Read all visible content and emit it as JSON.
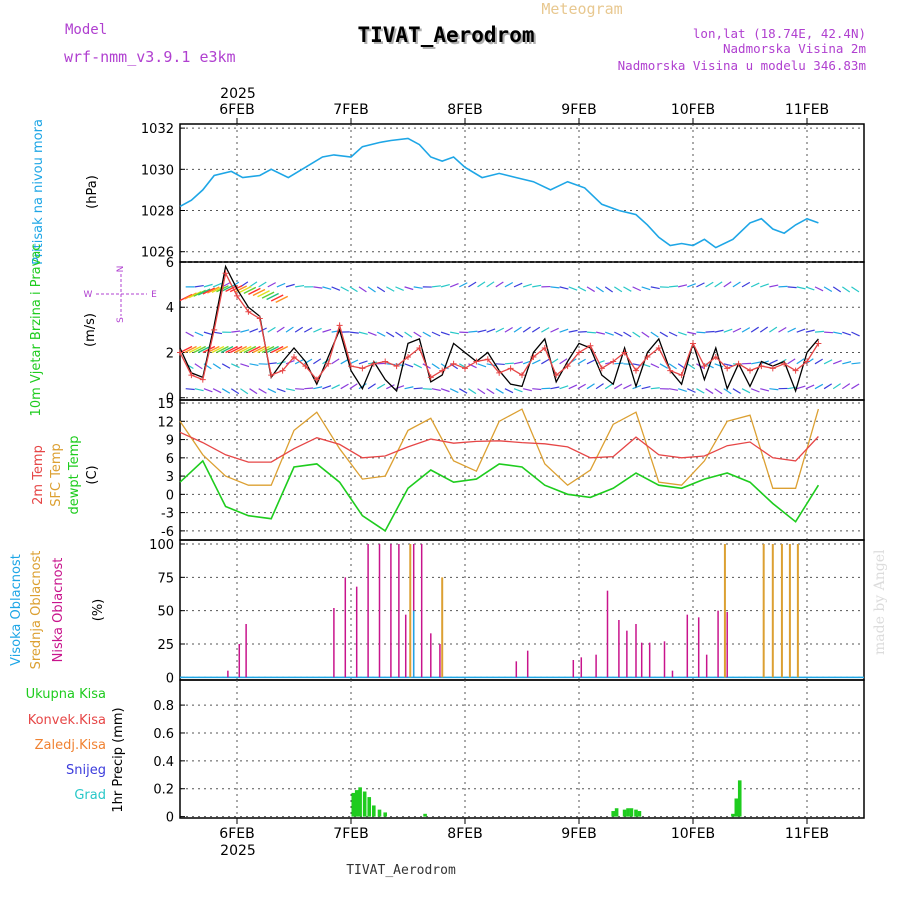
{
  "header": {
    "model_label": "Model",
    "model_name": "wrf-nmm_v3.9.1 e3km",
    "meteogram": "Meteogram",
    "title": "TIVAT_Aerodrom",
    "lonlat": "lon,lat (18.74E, 42.4N)",
    "height": "Nadmorska Visina 2m",
    "model_height": "Nadmorska Visina u modelu 346.83m",
    "footer": "TIVAT_Aerodrom",
    "watermark": "made by Angel",
    "year": "2025"
  },
  "colors": {
    "pressure": "#1ea6e6",
    "wind_speed": "#e64646",
    "wind_gust": "#000000",
    "temp_2m": "#e64646",
    "temp_sfc": "#dca032",
    "temp_dew": "#1ecc1e",
    "cloud_high": "#1ea6e6",
    "cloud_mid": "#dca032",
    "cloud_low": "#c8148c",
    "precip_total": "#1ecc1e",
    "label_green": "#1ecc1e",
    "label_red": "#e64646",
    "label_orange": "#f08232",
    "label_blue": "#3c3cdc",
    "label_cyan": "#28c8c8",
    "purple": "#b040d0"
  },
  "chart_data": [
    {
      "type": "line",
      "panel": "pressure",
      "ylabel_rotated": "Pritisak na nivou mora",
      "unit": "(hPa)",
      "ylim": [
        1025.5,
        1032.2
      ],
      "yticks": [
        1026,
        1028,
        1030,
        1032
      ],
      "x_range_days": [
        0,
        6
      ],
      "x_ticks": [
        "6FEB",
        "7FEB",
        "8FEB",
        "9FEB",
        "10FEB",
        "11FEB"
      ],
      "series": [
        {
          "name": "MSLP",
          "x": [
            0,
            0.1,
            0.2,
            0.3,
            0.45,
            0.55,
            0.7,
            0.8,
            0.95,
            1.1,
            1.25,
            1.35,
            1.5,
            1.6,
            1.75,
            1.85,
            2.0,
            2.1,
            2.2,
            2.3,
            2.4,
            2.5,
            2.65,
            2.8,
            2.95,
            3.1,
            3.25,
            3.4,
            3.55,
            3.7,
            3.85,
            4.0,
            4.1,
            4.2,
            4.3,
            4.4,
            4.5,
            4.6,
            4.7,
            4.85,
            5.0,
            5.1,
            5.2,
            5.3,
            5.4,
            5.5,
            5.6
          ],
          "y": [
            1028.2,
            1028.5,
            1029.0,
            1029.7,
            1029.9,
            1029.6,
            1029.7,
            1030.0,
            1029.6,
            1030.1,
            1030.6,
            1030.7,
            1030.6,
            1031.1,
            1031.3,
            1031.4,
            1031.5,
            1031.2,
            1030.6,
            1030.4,
            1030.6,
            1030.1,
            1029.6,
            1029.8,
            1029.6,
            1029.4,
            1029.0,
            1029.4,
            1029.1,
            1028.3,
            1028.0,
            1027.8,
            1027.3,
            1026.7,
            1026.3,
            1026.4,
            1026.3,
            1026.6,
            1026.2,
            1026.6,
            1027.4,
            1027.6,
            1027.1,
            1026.9,
            1027.3,
            1027.6,
            1027.4
          ]
        }
      ]
    },
    {
      "type": "line",
      "panel": "wind",
      "ylabel_rotated": "10m Vjetar Brzina i Pravac",
      "unit": "(m/s)",
      "ylim": [
        -0.1,
        6
      ],
      "yticks": [
        0,
        2,
        4,
        6
      ],
      "compass": {
        "n": "N",
        "s": "S",
        "w": "W",
        "e": "E"
      },
      "series": [
        {
          "name": "speed",
          "x": [
            0,
            0.1,
            0.2,
            0.3,
            0.4,
            0.5,
            0.6,
            0.7,
            0.8,
            0.9,
            1.0,
            1.1,
            1.2,
            1.3,
            1.4,
            1.5,
            1.6,
            1.7,
            1.8,
            1.9,
            2.0,
            2.1,
            2.2,
            2.3,
            2.4,
            2.5,
            2.6,
            2.7,
            2.8,
            2.9,
            3.0,
            3.1,
            3.2,
            3.3,
            3.4,
            3.5,
            3.6,
            3.7,
            3.8,
            3.9,
            4.0,
            4.1,
            4.2,
            4.3,
            4.4,
            4.5,
            4.6,
            4.7,
            4.8,
            4.9,
            5.0,
            5.1,
            5.2,
            5.3,
            5.4,
            5.5,
            5.6
          ],
          "y": [
            2.0,
            1.0,
            0.8,
            3.0,
            5.5,
            4.5,
            3.8,
            3.5,
            1.0,
            1.2,
            1.8,
            1.4,
            0.8,
            1.5,
            3.2,
            1.4,
            1.3,
            1.5,
            1.6,
            1.4,
            1.8,
            2.2,
            0.9,
            1.2,
            1.5,
            1.3,
            1.6,
            1.7,
            1.1,
            1.3,
            1.0,
            1.8,
            2.2,
            1.0,
            1.4,
            2.0,
            2.3,
            1.3,
            1.6,
            2.0,
            1.2,
            1.8,
            2.2,
            1.2,
            1.0,
            2.4,
            1.4,
            1.8,
            1.3,
            1.5,
            1.2,
            1.4,
            1.3,
            1.5,
            1.2,
            1.6,
            2.4
          ]
        },
        {
          "name": "gust",
          "x": [
            0,
            0.1,
            0.2,
            0.3,
            0.4,
            0.5,
            0.6,
            0.7,
            0.8,
            0.9,
            1.0,
            1.1,
            1.2,
            1.3,
            1.4,
            1.5,
            1.6,
            1.7,
            1.8,
            1.9,
            2.0,
            2.1,
            2.2,
            2.3,
            2.4,
            2.5,
            2.6,
            2.7,
            2.8,
            2.9,
            3.0,
            3.1,
            3.2,
            3.3,
            3.4,
            3.5,
            3.6,
            3.7,
            3.8,
            3.9,
            4.0,
            4.1,
            4.2,
            4.3,
            4.4,
            4.5,
            4.6,
            4.7,
            4.8,
            4.9,
            5.0,
            5.1,
            5.2,
            5.3,
            5.4,
            5.5,
            5.6
          ],
          "y": [
            2.2,
            1.1,
            0.9,
            3.2,
            5.8,
            4.8,
            4.0,
            3.6,
            0.9,
            1.6,
            2.2,
            1.6,
            0.6,
            1.8,
            3.0,
            1.2,
            0.4,
            1.6,
            0.8,
            0.3,
            2.4,
            2.6,
            0.7,
            1.0,
            2.4,
            2.0,
            1.6,
            2.0,
            1.2,
            0.6,
            0.5,
            2.0,
            2.6,
            0.7,
            1.6,
            2.4,
            2.2,
            1.0,
            0.6,
            2.2,
            0.5,
            2.0,
            2.6,
            1.2,
            0.6,
            2.4,
            0.8,
            2.2,
            0.4,
            1.5,
            0.5,
            1.6,
            1.4,
            1.6,
            0.3,
            2.0,
            2.6
          ]
        }
      ]
    },
    {
      "type": "line",
      "panel": "temperature",
      "ylabel_rotated": "2m Temp SFC Temp dewpt Temp",
      "labels": [
        "2m Temp",
        "SFC Temp",
        "dewpt Temp"
      ],
      "unit": "(C)",
      "ylim": [
        -7.5,
        15.5
      ],
      "yticks": [
        -6,
        -3,
        0,
        3,
        6,
        9,
        12,
        15
      ],
      "series": [
        {
          "name": "2m Temp",
          "x": [
            0,
            0.2,
            0.4,
            0.6,
            0.8,
            1.0,
            1.2,
            1.4,
            1.6,
            1.8,
            2.0,
            2.2,
            2.4,
            2.6,
            2.8,
            3.0,
            3.2,
            3.4,
            3.6,
            3.8,
            4.0,
            4.2,
            4.4,
            4.6,
            4.8,
            5.0,
            5.2,
            5.4,
            5.6
          ],
          "y": [
            10.2,
            8.5,
            6.5,
            5.3,
            5.3,
            7.5,
            9.3,
            8.2,
            6.0,
            6.3,
            7.8,
            9.1,
            8.4,
            8.7,
            8.8,
            8.5,
            8.3,
            7.8,
            6.0,
            6.2,
            9.4,
            6.5,
            6.0,
            6.3,
            8.0,
            8.6,
            6.0,
            5.5,
            9.5
          ]
        },
        {
          "name": "SFC Temp",
          "x": [
            0,
            0.2,
            0.4,
            0.6,
            0.8,
            1.0,
            1.2,
            1.4,
            1.6,
            1.8,
            2.0,
            2.2,
            2.4,
            2.6,
            2.8,
            3.0,
            3.2,
            3.4,
            3.6,
            3.8,
            4.0,
            4.2,
            4.4,
            4.6,
            4.8,
            5.0,
            5.2,
            5.4,
            5.6
          ],
          "y": [
            12.0,
            6.5,
            3.0,
            1.5,
            1.5,
            10.5,
            13.5,
            7.5,
            2.5,
            3.0,
            10.5,
            12.5,
            5.5,
            3.8,
            12.0,
            14.0,
            5.0,
            1.5,
            4.0,
            11.5,
            13.5,
            2.0,
            1.5,
            5.5,
            12.0,
            13.0,
            1.0,
            1.0,
            14.0
          ]
        },
        {
          "name": "dewpt Temp",
          "x": [
            0,
            0.2,
            0.4,
            0.6,
            0.8,
            1.0,
            1.2,
            1.4,
            1.6,
            1.8,
            2.0,
            2.2,
            2.4,
            2.6,
            2.8,
            3.0,
            3.2,
            3.4,
            3.6,
            3.8,
            4.0,
            4.2,
            4.4,
            4.6,
            4.8,
            5.0,
            5.2,
            5.4,
            5.6
          ],
          "y": [
            2.0,
            5.5,
            -2.0,
            -3.5,
            -4.0,
            4.5,
            5.0,
            2.0,
            -3.5,
            -6.0,
            1.0,
            4.0,
            2.0,
            2.5,
            5.0,
            4.5,
            1.5,
            0.0,
            -0.5,
            1.0,
            3.5,
            1.5,
            1.0,
            2.5,
            3.5,
            2.0,
            -1.5,
            -4.5,
            1.5
          ]
        }
      ]
    },
    {
      "type": "bar",
      "panel": "clouds",
      "labels": [
        "Visoka Oblacnost",
        "Srednja Oblacnost",
        "Niska Oblacnost"
      ],
      "unit": "(%)",
      "ylim": [
        -2,
        103
      ],
      "yticks": [
        0,
        25,
        50,
        75,
        100
      ],
      "series": [
        {
          "name": "Niska",
          "x": [
            0.42,
            0.52,
            0.58,
            1.35,
            1.45,
            1.55,
            1.65,
            1.75,
            1.85,
            1.92,
            1.98,
            2.05,
            2.12,
            2.2,
            2.28,
            2.95,
            3.05,
            3.45,
            3.52,
            3.65,
            3.75,
            3.85,
            3.92,
            4.0,
            4.05,
            4.12,
            4.25,
            4.32,
            4.45,
            4.55,
            4.62,
            4.72,
            4.8,
            4.88
          ],
          "y": [
            5,
            25,
            40,
            52,
            75,
            68,
            100,
            100,
            100,
            100,
            47,
            100,
            100,
            33,
            25,
            12,
            20,
            13,
            15,
            17,
            65,
            43,
            35,
            40,
            26,
            26,
            27,
            5,
            47,
            45,
            17,
            50,
            49,
            0
          ]
        },
        {
          "name": "Srednja",
          "x": [
            2.02,
            2.3,
            4.78,
            5.12,
            5.2,
            5.28,
            5.35,
            5.42
          ],
          "y": [
            100,
            75,
            100,
            100,
            100,
            100,
            100,
            100
          ]
        },
        {
          "name": "Visoka",
          "x": [
            2.05
          ],
          "y": [
            50
          ]
        }
      ]
    },
    {
      "type": "bar",
      "panel": "precip",
      "labels": [
        "Ukupna Kisa",
        "Konvek.Kisa",
        "Zaledj.Kisa",
        "Snijeg",
        "Grad"
      ],
      "ylabel_rotated": "1hr Precip (mm)",
      "ylim": [
        -0.01,
        0.98
      ],
      "yticks": [
        0,
        0.2,
        0.4,
        0.6,
        0.8
      ],
      "series": [
        {
          "name": "Ukupna Kisa",
          "x": [
            1.52,
            1.55,
            1.58,
            1.62,
            1.66,
            1.7,
            1.75,
            1.8,
            2.15,
            3.8,
            3.83,
            3.9,
            3.93,
            3.96,
            4.0,
            4.03,
            4.85,
            4.88,
            4.91
          ],
          "y": [
            0.17,
            0.19,
            0.21,
            0.18,
            0.14,
            0.08,
            0.05,
            0.03,
            0.02,
            0.04,
            0.06,
            0.05,
            0.06,
            0.06,
            0.05,
            0.04,
            0.02,
            0.13,
            0.26
          ]
        }
      ]
    }
  ]
}
